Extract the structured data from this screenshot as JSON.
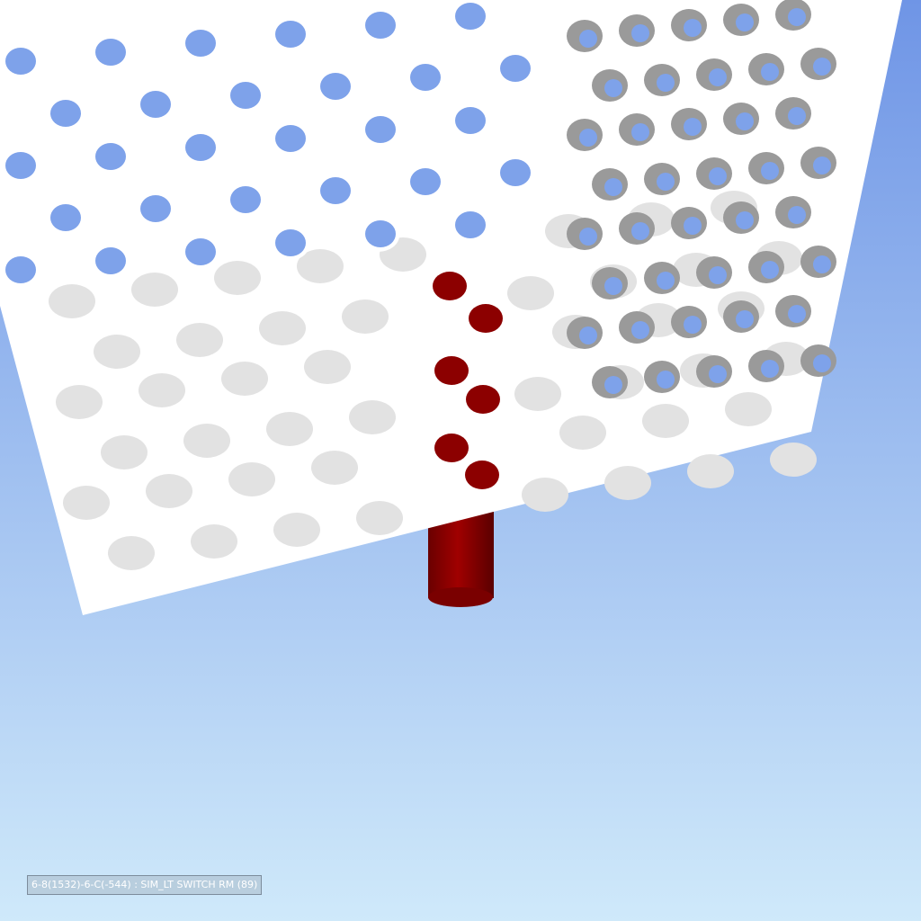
{
  "viewport": {
    "scene": "3d-model-view",
    "colors": {
      "sky_top": "#6f95e6",
      "sky_bottom": "#cfe9fa",
      "plate": "#ffffff",
      "hole_shade": "#e2e2e2",
      "hole_dark": "#9a9a9a",
      "hole_sky": "#7ea2ea",
      "pipe": "#8c0000",
      "pipe_dark": "#5a0000"
    }
  },
  "status_label": {
    "text": "6-8(1532)-6-C(-544) : SIM_LT SWITCH RM (89)"
  }
}
